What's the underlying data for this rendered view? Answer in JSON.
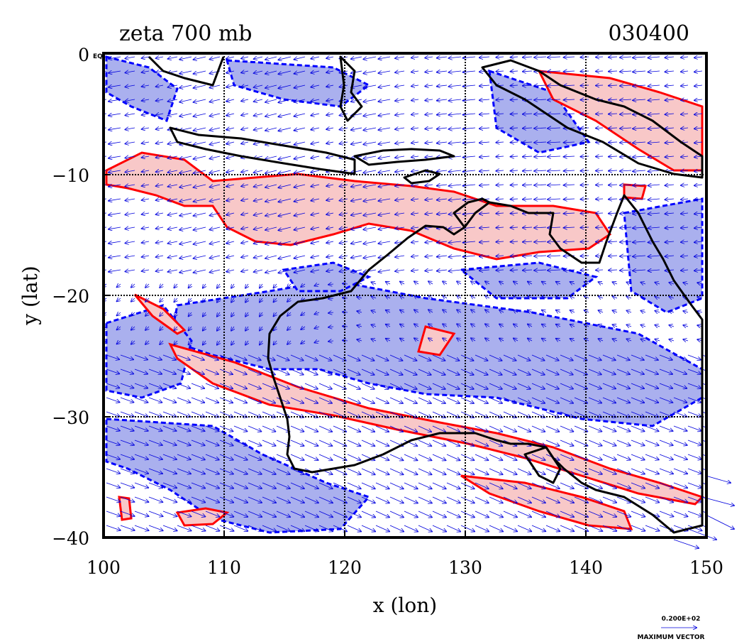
{
  "header": {
    "title": "zeta 700 mb",
    "timestamp": "030400"
  },
  "axes": {
    "xlabel": "x (lon)",
    "ylabel": "y (lat)",
    "x_ticks": [
      "100",
      "110",
      "120",
      "130",
      "140",
      "150"
    ],
    "y_ticks": [
      "0",
      "−10",
      "−20",
      "−30",
      "−40"
    ],
    "eq_label": "EQ",
    "xlim": [
      100,
      150
    ],
    "ylim": [
      -40,
      0
    ]
  },
  "legend": {
    "vector_magnitude": "0.200E+02",
    "vector_caption": "MAXIMUM VECTOR"
  },
  "colors": {
    "positive_contour": "#ff0000",
    "positive_fill": "#f8c8c8",
    "negative_contour": "#0000ff",
    "negative_fill": "#aab0ee",
    "vectors": "#0000dd",
    "coastline": "#000000"
  },
  "chart_data": {
    "type": "map",
    "field": "relative vorticity (zeta) at 700 mb with wind vectors",
    "title": "zeta 700 mb",
    "time": "030400",
    "xlabel": "x (lon)",
    "ylabel": "y (lat)",
    "xlim": [
      100,
      150
    ],
    "ylim": [
      -40,
      0
    ],
    "grid": true,
    "grid_lines_x": [
      110,
      120,
      130,
      140
    ],
    "grid_lines_y": [
      -10,
      -20,
      -30
    ],
    "vector_reference": "0.200E+02"
  }
}
